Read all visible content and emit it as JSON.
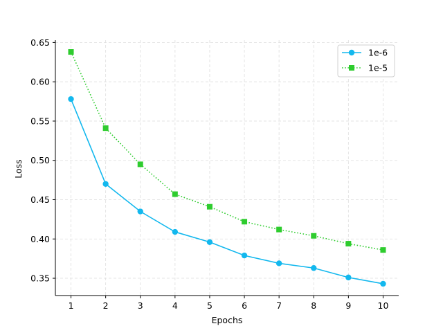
{
  "chart_data": {
    "type": "line",
    "title": "",
    "xlabel": "Epochs",
    "ylabel": "Loss",
    "x": [
      1,
      2,
      3,
      4,
      5,
      6,
      7,
      8,
      9,
      10
    ],
    "xlim": [
      0.55,
      10.45
    ],
    "ylim": [
      0.328,
      0.653
    ],
    "yticks": [
      0.35,
      0.4,
      0.45,
      0.5,
      0.55,
      0.6,
      0.65
    ],
    "ytick_labels": [
      "0.35",
      "0.40",
      "0.45",
      "0.50",
      "0.55",
      "0.60",
      "0.65"
    ],
    "xticks": [
      1,
      2,
      3,
      4,
      5,
      6,
      7,
      8,
      9,
      10
    ],
    "xtick_labels": [
      "1",
      "2",
      "3",
      "4",
      "5",
      "6",
      "7",
      "8",
      "9",
      "10"
    ],
    "grid": true,
    "legend_position": "top-right",
    "series": [
      {
        "name": "1e-6",
        "values": [
          0.578,
          0.47,
          0.435,
          0.409,
          0.396,
          0.379,
          0.369,
          0.363,
          0.351,
          0.343
        ],
        "color": "#13b8ee",
        "marker": "circle",
        "line_style": "solid"
      },
      {
        "name": "1e-5",
        "values": [
          0.638,
          0.541,
          0.495,
          0.457,
          0.441,
          0.422,
          0.412,
          0.404,
          0.394,
          0.386
        ],
        "color": "#2ecc2e",
        "marker": "square",
        "line_style": "dotted"
      }
    ]
  }
}
